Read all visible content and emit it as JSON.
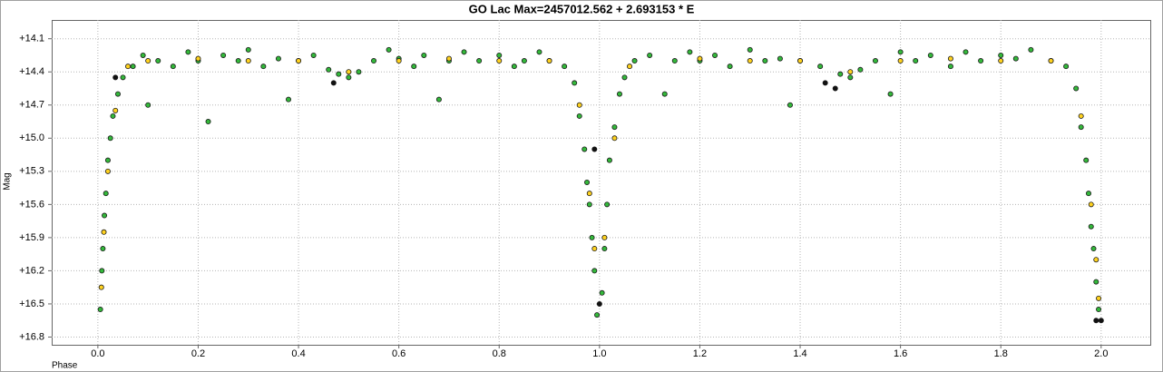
{
  "chart_data": {
    "type": "scatter",
    "title": "GO Lac Max=2457012.562 + 2.693153 * E",
    "x_label": "Phase",
    "y_label": "Mag",
    "xlim": [
      -0.092,
      2.098
    ],
    "xticks": [
      {
        "value": 0,
        "label": "0.0"
      },
      0.2,
      0.4,
      0.6,
      0.8,
      {
        "value": 1,
        "label": "1.0"
      },
      1.2,
      1.4,
      1.6,
      1.8,
      {
        "value": 2,
        "label": "2.0"
      }
    ],
    "ylim": [
      16.87,
      13.93
    ],
    "yticks": [
      {
        "value": 14.1,
        "label": "+14.1"
      },
      {
        "value": 14.4,
        "label": "+14.4"
      },
      {
        "value": 14.7,
        "label": "+14.7"
      },
      {
        "value": 15.0,
        "label": "+15.0"
      },
      {
        "value": 15.3,
        "label": "+15.3"
      },
      {
        "value": 15.6,
        "label": "+15.6"
      },
      {
        "value": 15.9,
        "label": "+15.9"
      },
      {
        "value": 16.2,
        "label": "+16.2"
      },
      {
        "value": 16.5,
        "label": "+16.5"
      },
      {
        "value": 16.8,
        "label": "+16.8"
      }
    ],
    "grid": true,
    "series": [
      {
        "color": "#33b83a",
        "x": [
          0.005,
          0.008,
          0.01,
          0.013,
          0.016,
          0.02,
          0.025,
          0.03,
          0.04,
          0.05,
          0.07,
          0.09,
          0.1,
          0.12,
          0.15,
          0.18,
          0.2,
          0.22,
          0.25,
          0.28,
          0.3,
          0.33,
          0.36,
          0.38,
          0.4,
          0.43,
          0.46,
          0.48,
          0.5,
          0.52,
          0.55,
          0.58,
          0.6,
          0.63,
          0.65,
          0.68,
          0.7,
          0.73,
          0.76,
          0.8,
          0.83,
          0.85,
          0.88,
          0.9,
          0.93,
          0.95,
          0.96,
          0.97,
          0.975,
          0.98,
          0.985,
          0.99,
          0.995,
          1.005,
          1.01,
          1.015,
          1.02,
          1.03,
          1.04,
          1.05,
          1.07,
          1.1,
          1.13,
          1.15,
          1.18,
          1.2,
          1.23,
          1.26,
          1.3,
          1.33,
          1.36,
          1.38,
          1.4,
          1.44,
          1.48,
          1.5,
          1.52,
          1.55,
          1.58,
          1.6,
          1.63,
          1.66,
          1.7,
          1.73,
          1.76,
          1.8,
          1.83,
          1.86,
          1.9,
          1.93,
          1.95,
          1.96,
          1.97,
          1.975,
          1.98,
          1.985,
          1.99,
          1.995
        ],
        "values": [
          16.55,
          16.2,
          16.0,
          15.7,
          15.5,
          15.2,
          15.0,
          14.8,
          14.6,
          14.45,
          14.35,
          14.25,
          14.7,
          14.3,
          14.35,
          14.22,
          14.3,
          14.85,
          14.25,
          14.3,
          14.2,
          14.35,
          14.28,
          14.65,
          14.3,
          14.25,
          14.38,
          14.42,
          14.45,
          14.4,
          14.3,
          14.2,
          14.28,
          14.35,
          14.25,
          14.65,
          14.3,
          14.22,
          14.3,
          14.25,
          14.35,
          14.3,
          14.22,
          14.3,
          14.35,
          14.5,
          14.8,
          15.1,
          15.4,
          15.6,
          15.9,
          16.2,
          16.6,
          16.4,
          16.0,
          15.6,
          15.2,
          14.9,
          14.6,
          14.45,
          14.3,
          14.25,
          14.6,
          14.3,
          14.22,
          14.3,
          14.25,
          14.35,
          14.2,
          14.3,
          14.28,
          14.7,
          14.3,
          14.35,
          14.42,
          14.45,
          14.38,
          14.3,
          14.6,
          14.22,
          14.3,
          14.25,
          14.35,
          14.22,
          14.3,
          14.25,
          14.28,
          14.2,
          14.3,
          14.35,
          14.55,
          14.9,
          15.2,
          15.5,
          15.8,
          16.0,
          16.3,
          16.55
        ]
      },
      {
        "color": "#ffd21f",
        "x": [
          0.007,
          0.012,
          0.02,
          0.035,
          0.06,
          0.1,
          0.2,
          0.3,
          0.4,
          0.5,
          0.6,
          0.7,
          0.8,
          0.9,
          0.96,
          0.98,
          0.99,
          1.01,
          1.03,
          1.06,
          1.2,
          1.3,
          1.4,
          1.5,
          1.6,
          1.7,
          1.8,
          1.9,
          1.96,
          1.98,
          1.99,
          1.995
        ],
        "values": [
          16.35,
          15.85,
          15.3,
          14.75,
          14.35,
          14.3,
          14.28,
          14.3,
          14.3,
          14.4,
          14.3,
          14.28,
          14.3,
          14.3,
          14.7,
          15.5,
          16.0,
          15.9,
          15.0,
          14.35,
          14.28,
          14.3,
          14.3,
          14.4,
          14.3,
          14.28,
          14.3,
          14.3,
          14.8,
          15.6,
          16.1,
          16.45
        ]
      },
      {
        "color": "#111111",
        "x": [
          0.035,
          0.47,
          0.99,
          1.0,
          1.45,
          1.47,
          1.99,
          2.0
        ],
        "values": [
          14.45,
          14.5,
          15.1,
          16.5,
          14.5,
          14.55,
          16.65,
          16.65
        ]
      }
    ]
  }
}
